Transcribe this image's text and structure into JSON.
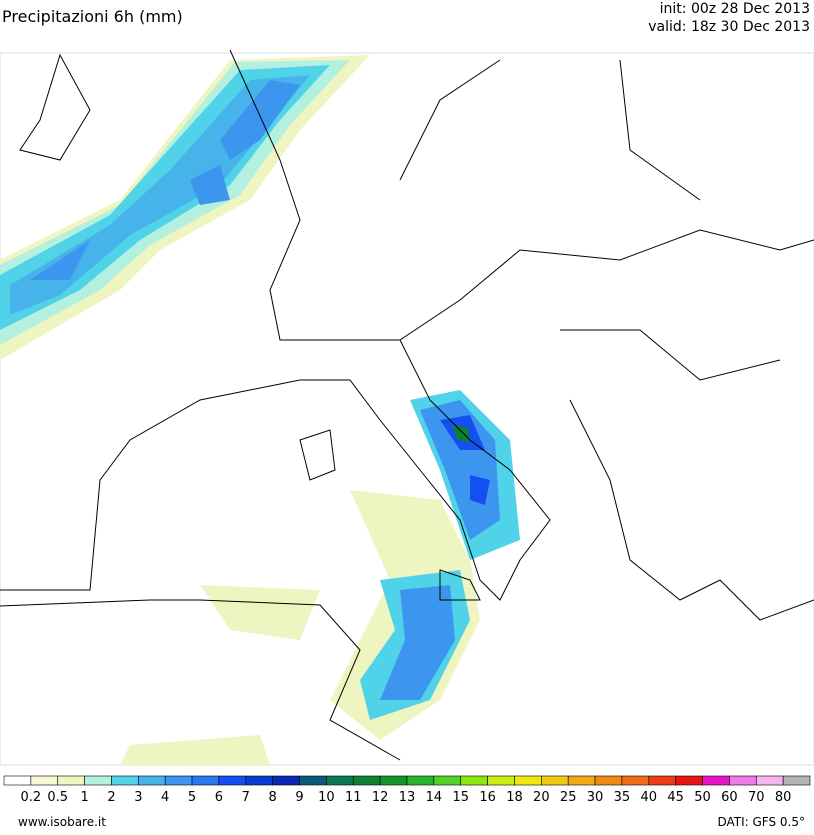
{
  "header": {
    "title": "Precipitazioni 6h (mm)",
    "init": "init: 00z 28 Dec 2013",
    "valid": "valid: 18z 30 Dec 2013"
  },
  "legend": {
    "colors": [
      "#ffffff",
      "#f7f7d2",
      "#eef5c0",
      "#b4f0e0",
      "#50d2e8",
      "#46b4ea",
      "#3c96f0",
      "#2878f0",
      "#1450f0",
      "#0a3cd2",
      "#0a28b4",
      "#0a5a78",
      "#0a7850",
      "#0a8232",
      "#149628",
      "#28b428",
      "#50d228",
      "#8ce614",
      "#c8f014",
      "#f0e614",
      "#f0c814",
      "#f0aa14",
      "#f08c14",
      "#f06e14",
      "#f03c14",
      "#e61414",
      "#e614c8",
      "#f07ae6",
      "#f5b4f0",
      "#b4b4b4"
    ],
    "labels": [
      0.2,
      0.5,
      1,
      2,
      3,
      4,
      5,
      6,
      7,
      8,
      9,
      10,
      11,
      12,
      13,
      14,
      15,
      16,
      18,
      20,
      25,
      30,
      35,
      40,
      45,
      50,
      60,
      70,
      80
    ]
  },
  "footer": {
    "site": "www.isobare.it",
    "source": "DATI: GFS 0.5°"
  }
}
